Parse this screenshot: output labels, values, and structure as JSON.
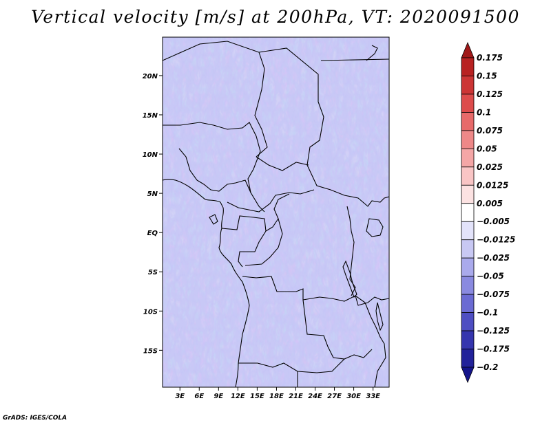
{
  "chart_data": {
    "type": "heatmap",
    "title": "Vertical velocity [m/s] at 200hPa, VT: 2020091500",
    "variable": "Vertical velocity",
    "units": "m/s",
    "level": "200hPa",
    "valid_time": "2020091500",
    "x_ticks": [
      "3E",
      "6E",
      "9E",
      "12E",
      "15E",
      "18E",
      "21E",
      "24E",
      "27E",
      "30E",
      "33E"
    ],
    "x_tick_values": [
      3,
      6,
      9,
      12,
      15,
      18,
      21,
      24,
      27,
      30,
      33
    ],
    "y_ticks": [
      "20N",
      "15N",
      "10N",
      "5N",
      "EQ",
      "5S",
      "10S",
      "15S"
    ],
    "y_tick_values": [
      20,
      15,
      10,
      5,
      0,
      -5,
      -10,
      -15
    ],
    "xlim": [
      0.3,
      35.5
    ],
    "ylim": [
      -19.7,
      24.9
    ],
    "colorbar": {
      "levels": [
        "0.175",
        "0.15",
        "0.125",
        "0.1",
        "0.075",
        "0.05",
        "0.025",
        "0.0125",
        "0.005",
        "−0.005",
        "−0.0125",
        "−0.025",
        "−0.05",
        "−0.075",
        "−0.1",
        "−0.125",
        "−0.175",
        "−0.2"
      ],
      "colors": [
        "#a01818",
        "#b82222",
        "#cc3535",
        "#dd4c4c",
        "#e76a6a",
        "#ee8888",
        "#f4a6a6",
        "#f9c5c5",
        "#fce2e2",
        "#ffffff",
        "#e3e3fa",
        "#c8c8f3",
        "#aaaaec",
        "#8a8ae0",
        "#6b6bd3",
        "#4e4ec2",
        "#3535ae",
        "#22229a",
        "#14148a"
      ]
    },
    "credit": "GrADS: IGES/COLA"
  }
}
